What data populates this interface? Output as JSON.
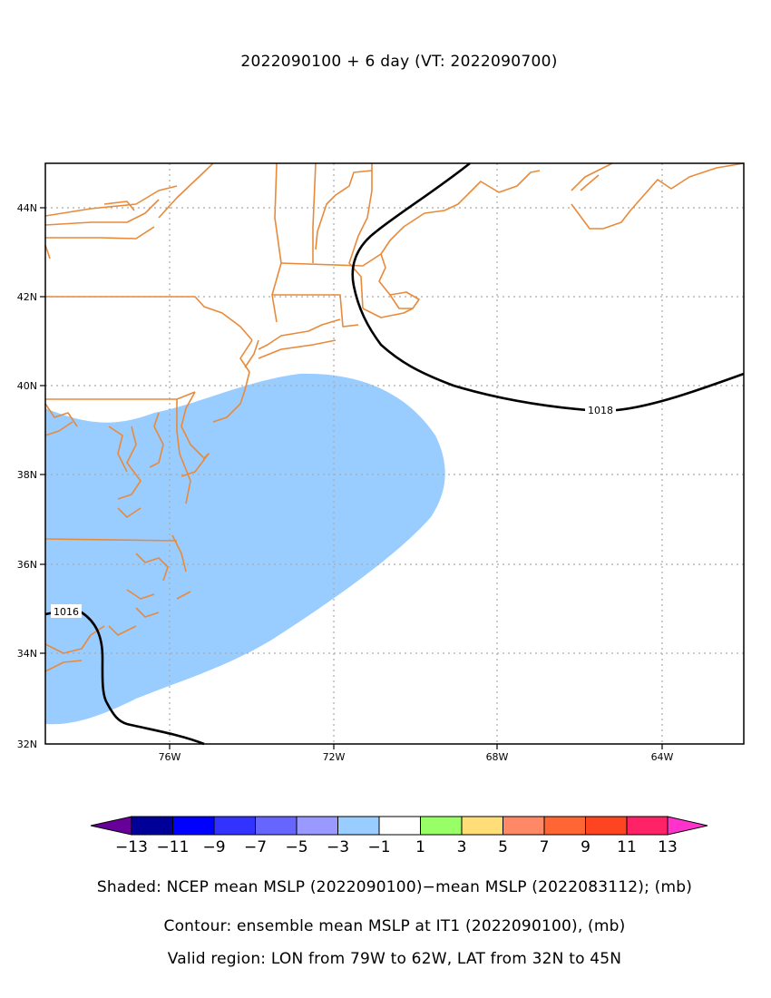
{
  "title": "2022090100 + 6 day (VT: 2022090700)",
  "map": {
    "lon_range": [
      -79,
      -62
    ],
    "lat_range": [
      32,
      45
    ],
    "lon_ticks": [
      {
        "value": -76,
        "label": "76W"
      },
      {
        "value": -72,
        "label": "72W"
      },
      {
        "value": -68,
        "label": "68W"
      },
      {
        "value": -64,
        "label": "64W"
      }
    ],
    "lat_ticks": [
      {
        "value": 44,
        "label": "44N"
      },
      {
        "value": 42,
        "label": "42N"
      },
      {
        "value": 40,
        "label": "40N"
      },
      {
        "value": 38,
        "label": "38N"
      },
      {
        "value": 36,
        "label": "36N"
      },
      {
        "value": 34,
        "label": "34N"
      },
      {
        "value": 32,
        "label": "32N"
      }
    ],
    "gridlines": "dotted",
    "coastline_color": "#e88a3a",
    "shaded_anomaly": {
      "range_mb": [
        -3,
        -1
      ],
      "color": "#99ccff"
    },
    "contours": [
      {
        "value_mb": 1018,
        "label": "1018"
      },
      {
        "value_mb": 1016,
        "label": "1016"
      }
    ]
  },
  "colorbar": {
    "labels": [
      "−13",
      "−11",
      "−9",
      "−7",
      "−5",
      "−3",
      "−1",
      "1",
      "3",
      "5",
      "7",
      "9",
      "11",
      "13"
    ],
    "colors": [
      "#000099",
      "#0000ff",
      "#3333ff",
      "#6666ff",
      "#9999ff",
      "#99ccff",
      "#ffffff",
      "#99ff66",
      "#ffdd77",
      "#ff8866",
      "#ff6633",
      "#ff4422",
      "#ff2266"
    ],
    "low_extend_color": "#660099",
    "high_extend_color": "#ff33cc"
  },
  "captions": {
    "shaded": "Shaded: NCEP mean MSLP (2022090100)−mean MSLP (2022083112); (mb)",
    "contour": "Contour: ensemble mean MSLP at IT1 (2022090100), (mb)",
    "region": "Valid region: LON from 79W to 62W, LAT from 32N to 45N"
  }
}
